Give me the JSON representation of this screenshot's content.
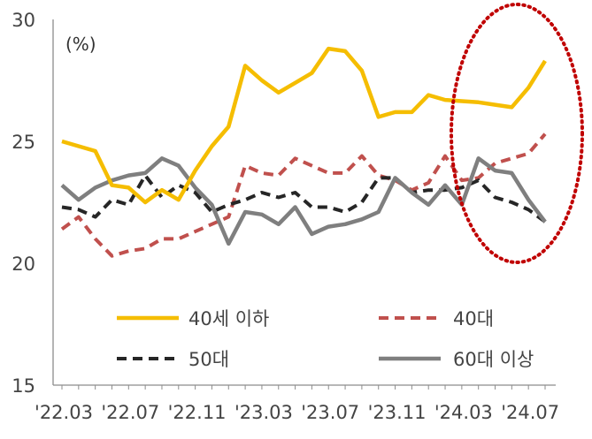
{
  "chart_data": {
    "type": "line",
    "unit": "(%)",
    "ylim": [
      15,
      30
    ],
    "y_ticks": [
      15,
      20,
      25,
      30
    ],
    "x_tick_labels": [
      "'22.03",
      "'22.07",
      "'22.11",
      "'23.03",
      "'23.07",
      "'23.11",
      "'24.03",
      "'24.07"
    ],
    "series": [
      {
        "name": "40세 이하",
        "color": "#F5BD00",
        "style": "solid",
        "values": [
          25.0,
          24.8,
          24.6,
          23.2,
          23.1,
          22.5,
          23.0,
          22.6,
          23.8,
          24.8,
          25.6,
          28.1,
          27.5,
          27.0,
          27.4,
          27.8,
          28.8,
          28.7,
          27.9,
          26.0,
          26.2,
          26.2,
          26.9,
          26.7,
          26.65,
          26.6,
          26.5,
          26.4,
          27.2,
          28.3
        ]
      },
      {
        "name": "40대",
        "color": "#C0504D",
        "style": "dashed",
        "values": [
          21.4,
          21.9,
          21.0,
          20.3,
          20.5,
          20.6,
          21.0,
          21.0,
          21.3,
          21.6,
          21.9,
          24.0,
          23.7,
          23.6,
          24.3,
          24.0,
          23.7,
          23.7,
          24.4,
          23.6,
          23.4,
          23.0,
          23.3,
          24.4,
          23.4,
          23.5,
          24.1,
          24.3,
          24.5,
          25.3
        ]
      },
      {
        "name": "50대",
        "color": "#262626",
        "style": "dashed",
        "values": [
          22.3,
          22.2,
          21.9,
          22.6,
          22.4,
          23.6,
          22.7,
          23.2,
          22.9,
          22.1,
          22.4,
          22.6,
          22.9,
          22.7,
          22.9,
          22.3,
          22.3,
          22.1,
          22.5,
          23.5,
          23.5,
          22.9,
          23.0,
          23.0,
          23.1,
          23.4,
          22.7,
          22.5,
          22.2,
          21.7
        ]
      },
      {
        "name": "60대 이상",
        "color": "#7F7F7F",
        "style": "solid",
        "values": [
          23.2,
          22.6,
          23.1,
          23.4,
          23.6,
          23.7,
          24.3,
          24.0,
          23.1,
          22.4,
          20.8,
          22.1,
          22.0,
          21.6,
          22.3,
          21.2,
          21.5,
          21.6,
          21.8,
          22.1,
          23.5,
          22.9,
          22.4,
          23.2,
          22.4,
          24.3,
          23.8,
          23.7,
          22.6,
          21.7
        ]
      }
    ],
    "highlight": {
      "shape": "dotted-ellipse",
      "color": "#C00000",
      "region": "last six months ('24.02–'24.07)"
    },
    "legend_placement": "bottom-inside",
    "grid": false
  }
}
